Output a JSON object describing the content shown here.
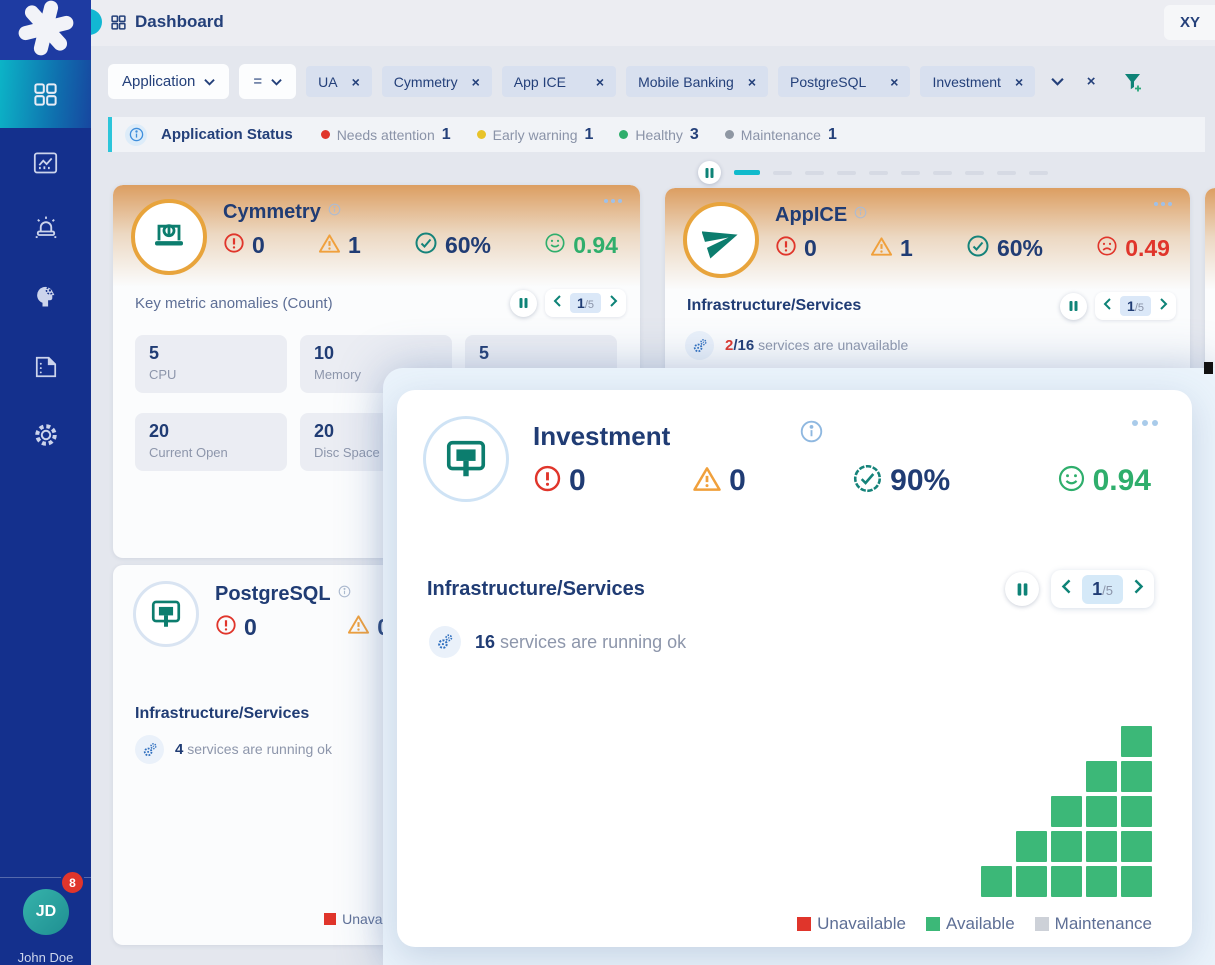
{
  "app": {
    "header_title": "Dashboard",
    "top_right_label": "XY"
  },
  "sidebar": {
    "nav": [
      {
        "name": "dashboard",
        "active": true
      },
      {
        "name": "analytics",
        "active": false
      },
      {
        "name": "alerts",
        "active": false
      },
      {
        "name": "ai-insights",
        "active": false
      },
      {
        "name": "reports",
        "active": false
      },
      {
        "name": "settings",
        "active": false
      }
    ],
    "user": {
      "initials": "JD",
      "badge_count": "8",
      "name": "John Doe"
    }
  },
  "filter_bar": {
    "field": "Application",
    "operator": "=",
    "chips": [
      "UA",
      "Cymmetry",
      "App ICE",
      "Mobile Banking",
      "PostgreSQL",
      "Investment"
    ],
    "close_glyph": "×"
  },
  "status_bar": {
    "title": "Application Status",
    "items": [
      {
        "label": "Needs attention",
        "count": "1",
        "color": "#e0352b"
      },
      {
        "label": "Early warning",
        "count": "1",
        "color": "#e8c32a"
      },
      {
        "label": "Healthy",
        "count": "3",
        "color": "#2fae6c"
      },
      {
        "label": "Maintenance",
        "count": "1",
        "color": "#8f97a3"
      }
    ]
  },
  "cards_carousel": {
    "pages": 10,
    "active_index": 0
  },
  "cards": {
    "cymmetry": {
      "title": "Cymmetry",
      "critical": "0",
      "warning": "1",
      "availability": "60%",
      "score": "0.94",
      "section_title": "Key metric anomalies (Count)",
      "pager": {
        "current": "1",
        "total": "/5"
      },
      "tiles": [
        {
          "value": "5",
          "label": "CPU"
        },
        {
          "value": "10",
          "label": "Memory"
        },
        {
          "value": "5",
          "label": ""
        },
        {
          "value": "20",
          "label": "Current Open"
        },
        {
          "value": "20",
          "label": "Disc Space"
        }
      ]
    },
    "appice": {
      "title": "AppICE",
      "critical": "0",
      "warning": "1",
      "availability": "60%",
      "score": "0.49",
      "section_title": "Infrastructure/Services",
      "pager": {
        "current": "1",
        "total": "/5"
      },
      "service": {
        "highlight": "2",
        "mid": "/16",
        "text": "services are unavailable"
      }
    },
    "postgresql": {
      "title": "PostgreSQL",
      "critical": "0",
      "warning": "0",
      "section_title": "Infrastructure/Services",
      "service": {
        "highlight": "4",
        "text": "services are running ok"
      }
    }
  },
  "overlay": {
    "title": "Investment",
    "critical": "0",
    "warning": "0",
    "availability": "90%",
    "score": "0.94",
    "section_title": "Infrastructure/Services",
    "pager": {
      "current": "1",
      "total": "/5"
    },
    "service": {
      "highlight": "16",
      "text": "services are running ok"
    },
    "chart_data": {
      "type": "heatmap",
      "description": "service availability grid, columns of squares bottom-aligned",
      "columns": [
        1,
        2,
        3,
        4,
        5
      ],
      "total_squares": 15,
      "square_status": "Available",
      "color": "#3cb878"
    }
  },
  "legend": {
    "items": [
      {
        "label": "Unavailable",
        "color": "#e0352b"
      },
      {
        "label": "Available",
        "color": "#3cb878"
      },
      {
        "label": "Maintenance",
        "color": "#cdd1d8"
      }
    ]
  },
  "colors": {
    "accent_teal": "#0e8377",
    "icon_teal": "#0c7d6e",
    "danger_red": "#e0352b",
    "warn_orange": "#f0a03c",
    "ok_green": "#2fae6c",
    "sidebar_blue": "#14308d",
    "active_nav_teal": "#0cb4c7"
  }
}
